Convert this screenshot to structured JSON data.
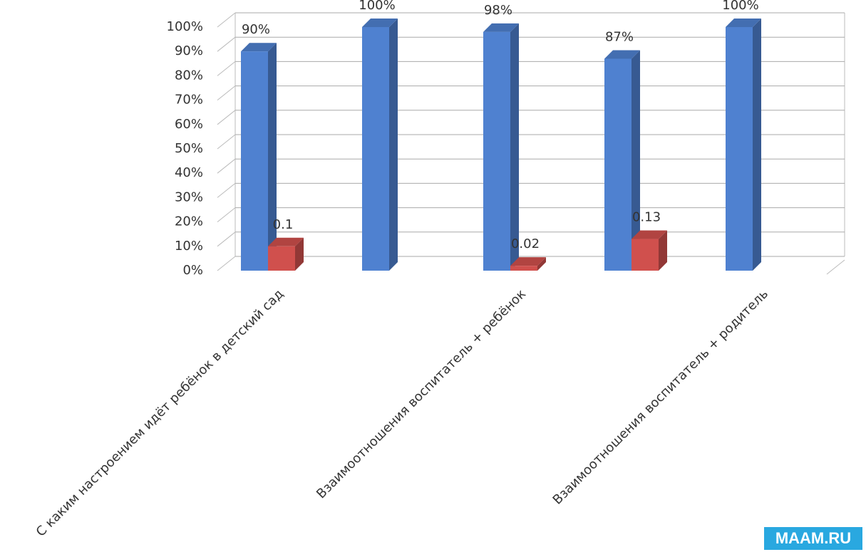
{
  "chart_data": {
    "type": "bar3d",
    "categories": [
      "С каким настроением идёт ребёнок в детский сад",
      null,
      "Взаимоотношения воспитатель + ребёнок",
      null,
      "Взаимоотношения воспитатель + родитель"
    ],
    "series": [
      {
        "color": "#4f81d0",
        "values": [
          90,
          100,
          98,
          87,
          100
        ],
        "value_labels": [
          "90%",
          "100%",
          "98%",
          "87%",
          "100%"
        ]
      },
      {
        "color": "#d0504d",
        "values": [
          10,
          null,
          2,
          13,
          null
        ],
        "value_labels": [
          "0.1",
          null,
          "0.02",
          "0.13",
          null
        ]
      }
    ],
    "ylim": [
      0,
      100
    ],
    "yticks": [
      {
        "value": 0,
        "label": "0%"
      },
      {
        "value": 10,
        "label": "10%"
      },
      {
        "value": 20,
        "label": "20%"
      },
      {
        "value": 30,
        "label": "30%"
      },
      {
        "value": 40,
        "label": "40%"
      },
      {
        "value": 50,
        "label": "50%"
      },
      {
        "value": 60,
        "label": "60%"
      },
      {
        "value": 70,
        "label": "70%"
      },
      {
        "value": 80,
        "label": "80%"
      },
      {
        "value": 90,
        "label": "90%"
      },
      {
        "value": 100,
        "label": "100%"
      }
    ],
    "grid": true
  },
  "watermark": "MAAM.RU"
}
